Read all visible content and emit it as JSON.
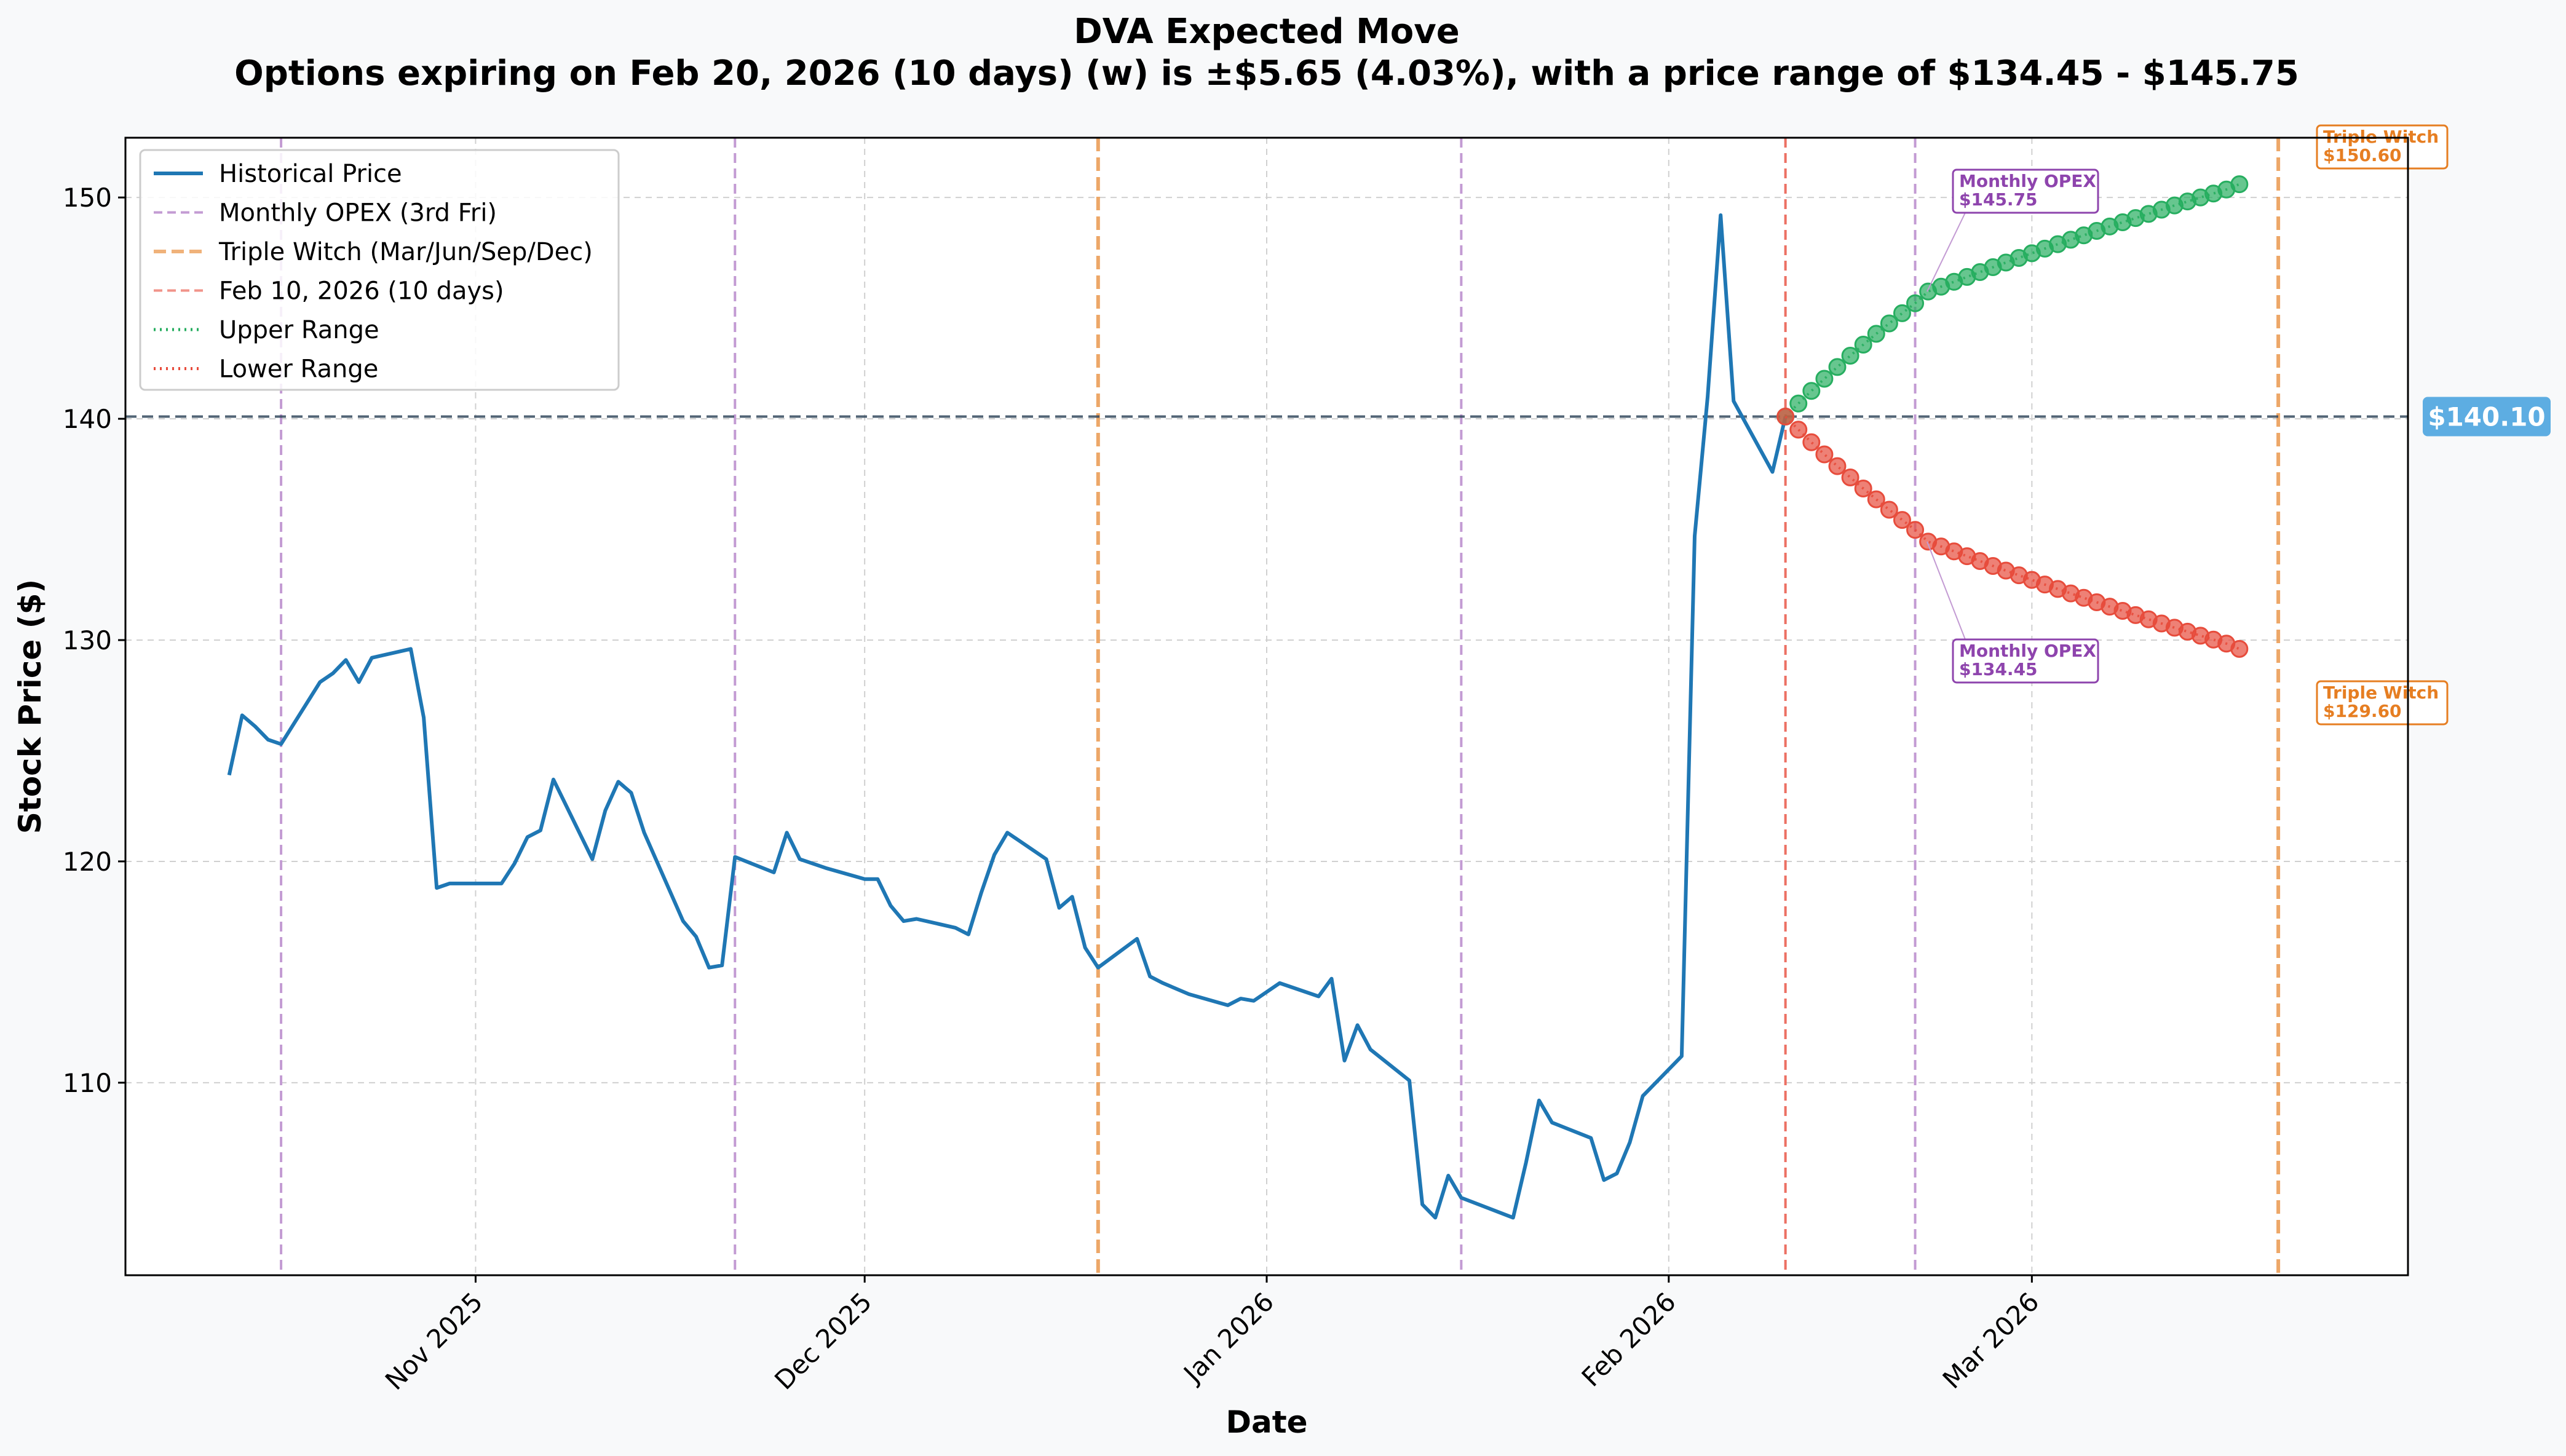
{
  "chart_data": {
    "type": "line",
    "title": "DVA Expected Move",
    "subtitle": "Options expiring on Feb 20, 2026 (10 days) (w) is ±$5.65 (4.03%), with a price range of $134.45 - $145.75",
    "xlabel": "Date",
    "ylabel": "Stock Price ($)",
    "xlim": [
      "2025-10-05",
      "2026-03-30"
    ],
    "ylim": [
      101.3,
      152.7
    ],
    "x_ticks": [
      {
        "date": "2025-11-01",
        "label": "Nov 2025"
      },
      {
        "date": "2025-12-01",
        "label": "Dec 2025"
      },
      {
        "date": "2026-01-01",
        "label": "Jan 2026"
      },
      {
        "date": "2026-02-01",
        "label": "Feb 2026"
      },
      {
        "date": "2026-03-01",
        "label": "Mar 2026"
      }
    ],
    "y_ticks": [
      110,
      120,
      130,
      140,
      150
    ],
    "grid": true,
    "legend_position": "top-left",
    "legend": [
      {
        "label": "Historical Price",
        "style": "solid",
        "color": "#1f77b4"
      },
      {
        "label": "Monthly OPEX (3rd Fri)",
        "style": "dashed",
        "color": "#c39bd3"
      },
      {
        "label": "Triple Witch (Mar/Jun/Sep/Dec)",
        "style": "dashed-thick",
        "color": "#f0b27a"
      },
      {
        "label": "Feb 10, 2026 (10 days)",
        "style": "dashed",
        "color": "#f1948a"
      },
      {
        "label": "Upper Range",
        "style": "dotted",
        "color": "#27ae60"
      },
      {
        "label": "Lower Range",
        "style": "dotted",
        "color": "#e74c3c"
      }
    ],
    "current_price": 140.1,
    "current_price_label": "$140.10",
    "monthly_opex_dates": [
      "2025-10-17",
      "2025-11-21",
      "2026-01-16",
      "2026-02-20"
    ],
    "triple_witch_dates": [
      "2025-12-19",
      "2026-03-20"
    ],
    "reference_date": "2026-02-10",
    "series": [
      {
        "name": "Historical Price",
        "x": [
          "2025-10-13",
          "2025-10-14",
          "2025-10-15",
          "2025-10-16",
          "2025-10-17",
          "2025-10-20",
          "2025-10-21",
          "2025-10-22",
          "2025-10-23",
          "2025-10-24",
          "2025-10-27",
          "2025-10-28",
          "2025-10-29",
          "2025-10-30",
          "2025-10-31",
          "2025-11-03",
          "2025-11-04",
          "2025-11-05",
          "2025-11-06",
          "2025-11-07",
          "2025-11-10",
          "2025-11-11",
          "2025-11-12",
          "2025-11-13",
          "2025-11-14",
          "2025-11-17",
          "2025-11-18",
          "2025-11-19",
          "2025-11-20",
          "2025-11-21",
          "2025-11-24",
          "2025-11-25",
          "2025-11-26",
          "2025-11-28",
          "2025-12-01",
          "2025-12-02",
          "2025-12-03",
          "2025-12-04",
          "2025-12-05",
          "2025-12-08",
          "2025-12-09",
          "2025-12-10",
          "2025-12-11",
          "2025-12-12",
          "2025-12-15",
          "2025-12-16",
          "2025-12-17",
          "2025-12-18",
          "2025-12-19",
          "2025-12-22",
          "2025-12-23",
          "2025-12-24",
          "2025-12-26",
          "2025-12-29",
          "2025-12-30",
          "2025-12-31",
          "2026-01-02",
          "2026-01-05",
          "2026-01-06",
          "2026-01-07",
          "2026-01-08",
          "2026-01-09",
          "2026-01-12",
          "2026-01-13",
          "2026-01-14",
          "2026-01-15",
          "2026-01-16",
          "2026-01-20",
          "2026-01-21",
          "2026-01-22",
          "2026-01-23",
          "2026-01-26",
          "2026-01-27",
          "2026-01-28",
          "2026-01-29",
          "2026-01-30",
          "2026-02-02",
          "2026-02-03",
          "2026-02-04",
          "2026-02-05",
          "2026-02-06",
          "2026-02-09",
          "2026-02-10"
        ],
        "values": [
          123.9,
          126.6,
          126.1,
          125.5,
          125.3,
          128.1,
          128.5,
          129.1,
          128.1,
          129.2,
          129.6,
          126.5,
          118.8,
          119.0,
          119.0,
          119.0,
          119.9,
          121.1,
          121.4,
          123.7,
          120.1,
          122.3,
          123.6,
          123.1,
          121.3,
          117.3,
          116.6,
          115.2,
          115.3,
          120.2,
          119.5,
          121.3,
          120.1,
          119.7,
          119.2,
          119.2,
          118.0,
          117.3,
          117.4,
          117.0,
          116.7,
          118.6,
          120.3,
          121.3,
          120.1,
          117.9,
          118.4,
          116.1,
          115.2,
          116.5,
          114.8,
          114.5,
          114.0,
          113.5,
          113.8,
          113.7,
          114.5,
          113.9,
          114.7,
          111.0,
          112.6,
          111.5,
          110.1,
          104.5,
          103.9,
          105.8,
          104.8,
          103.9,
          106.4,
          109.2,
          108.2,
          107.5,
          105.6,
          105.9,
          107.3,
          109.4,
          111.2,
          134.7,
          141.0,
          149.2,
          140.8,
          137.6,
          140.1
        ]
      },
      {
        "name": "Upper Range",
        "x_start": "2026-02-10",
        "x_step_days": 1,
        "values": [
          140.1,
          140.69,
          141.26,
          141.81,
          142.34,
          142.85,
          143.35,
          143.84,
          144.31,
          144.77,
          145.22,
          145.75,
          145.97,
          146.19,
          146.41,
          146.63,
          146.85,
          147.06,
          147.27,
          147.48,
          147.69,
          147.89,
          148.09,
          148.29,
          148.49,
          148.69,
          148.88,
          149.07,
          149.26,
          149.45,
          149.64,
          149.82,
          150.0,
          150.18,
          150.36,
          150.6
        ]
      },
      {
        "name": "Lower Range",
        "x_start": "2026-02-10",
        "x_step_days": 1,
        "values": [
          140.1,
          139.51,
          138.94,
          138.39,
          137.86,
          137.35,
          136.85,
          136.36,
          135.89,
          135.43,
          134.98,
          134.45,
          134.23,
          134.01,
          133.79,
          133.57,
          133.35,
          133.14,
          132.93,
          132.72,
          132.51,
          132.31,
          132.11,
          131.91,
          131.71,
          131.51,
          131.32,
          131.13,
          130.94,
          130.75,
          130.56,
          130.38,
          130.2,
          130.02,
          129.84,
          129.6
        ]
      }
    ],
    "annotations": [
      {
        "kind": "opex",
        "date": "2026-02-20",
        "price": 145.75,
        "lines": [
          "Monthly OPEX",
          "$145.75"
        ]
      },
      {
        "kind": "opex",
        "date": "2026-02-20",
        "price": 134.45,
        "lines": [
          "Monthly OPEX",
          "$134.45"
        ]
      },
      {
        "kind": "witch",
        "date": "2026-03-20",
        "price": 150.6,
        "lines": [
          "Triple Witch",
          "$150.60"
        ]
      },
      {
        "kind": "witch",
        "date": "2026-03-20",
        "price": 129.6,
        "lines": [
          "Triple Witch",
          "$129.60"
        ]
      }
    ],
    "colors": {
      "price": "#1f77b4",
      "opex": "#c39bd3",
      "witch": "#eb984e",
      "reference": "#ec7063",
      "upper": "#27ae60",
      "lower": "#e74c3c",
      "current": "#34495e",
      "current_badge": "#5dade2",
      "opex_text": "#8e44ad",
      "witch_text": "#e67e22"
    }
  }
}
